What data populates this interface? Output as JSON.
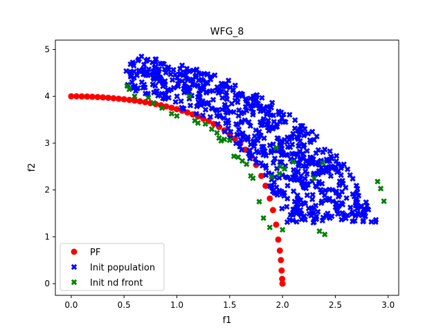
{
  "chart_data": {
    "type": "scatter",
    "title": "WFG_8",
    "xlabel": "f1",
    "ylabel": "f2",
    "xlim": [
      -0.15,
      3.1
    ],
    "ylim": [
      -0.25,
      5.2
    ],
    "xticks": [
      0.0,
      0.5,
      1.0,
      1.5,
      2.0,
      2.5,
      3.0
    ],
    "xtick_labels": [
      "0.0",
      "0.5",
      "1.0",
      "1.5",
      "2.0",
      "2.5",
      "3.0"
    ],
    "yticks": [
      0,
      1,
      2,
      3,
      4,
      5
    ],
    "ytick_labels": [
      "0",
      "1",
      "2",
      "3",
      "4",
      "5"
    ],
    "grid": false,
    "legend_position": "lower-left",
    "series": [
      {
        "name": "PF",
        "marker": "circle",
        "color": "#ff0000",
        "description": "quarter ellipse from (0,4) to (2,0)",
        "x": [
          0.0,
          0.05,
          0.1,
          0.15,
          0.2,
          0.25,
          0.3,
          0.35,
          0.4,
          0.45,
          0.5,
          0.55,
          0.6,
          0.65,
          0.7,
          0.75,
          0.8,
          0.85,
          0.9,
          0.95,
          1.0,
          1.05,
          1.1,
          1.15,
          1.2,
          1.25,
          1.3,
          1.35,
          1.4,
          1.45,
          1.5,
          1.55,
          1.6,
          1.65,
          1.7,
          1.75,
          1.8,
          1.84,
          1.88,
          1.91,
          1.94,
          1.96,
          1.975,
          1.985,
          1.992,
          1.997,
          2.0
        ],
        "y": [
          4.0,
          4.0,
          3.998,
          3.995,
          3.99,
          3.984,
          3.977,
          3.969,
          3.959,
          3.949,
          3.937,
          3.924,
          3.909,
          3.893,
          3.875,
          3.855,
          3.833,
          3.81,
          3.784,
          3.755,
          3.725,
          3.691,
          3.655,
          3.614,
          3.571,
          3.523,
          3.47,
          3.41,
          3.346,
          3.273,
          3.19,
          3.096,
          2.99,
          2.86,
          2.715,
          2.534,
          2.3,
          2.09,
          1.818,
          1.57,
          1.26,
          0.94,
          0.706,
          0.503,
          0.28,
          0.1,
          0.0
        ]
      },
      {
        "name": "Init population",
        "marker": "x",
        "color": "#0000ff",
        "description": "random points inside upper-right region bounded by ellipse (a=3, b=5) and the PF",
        "x": [],
        "y": []
      },
      {
        "name": "Init nd front",
        "marker": "x",
        "color": "#008000",
        "x": [
          0.53,
          0.55,
          0.6,
          0.73,
          0.78,
          0.86,
          0.95,
          1.0,
          1.12,
          1.17,
          1.2,
          1.27,
          1.33,
          1.38,
          1.4,
          1.42,
          1.45,
          1.5,
          1.54,
          1.58,
          1.62,
          1.66,
          1.7,
          1.72,
          1.78,
          1.82,
          1.88,
          1.9,
          1.94,
          1.97,
          1.98,
          2.0,
          2.02,
          2.1,
          2.3,
          2.35,
          2.38,
          2.4,
          2.9,
          2.93,
          2.96
        ],
        "y": [
          4.22,
          4.15,
          4.0,
          3.97,
          3.86,
          3.75,
          3.63,
          3.58,
          4.0,
          3.48,
          3.43,
          3.41,
          3.3,
          3.22,
          3.11,
          3.05,
          3.08,
          3.06,
          2.72,
          2.7,
          2.62,
          2.55,
          2.3,
          2.25,
          1.75,
          1.4,
          1.2,
          2.28,
          2.9,
          2.35,
          2.5,
          1.15,
          2.45,
          2.6,
          2.25,
          1.12,
          2.58,
          1.05,
          2.18,
          2.03,
          1.76
        ]
      }
    ]
  }
}
